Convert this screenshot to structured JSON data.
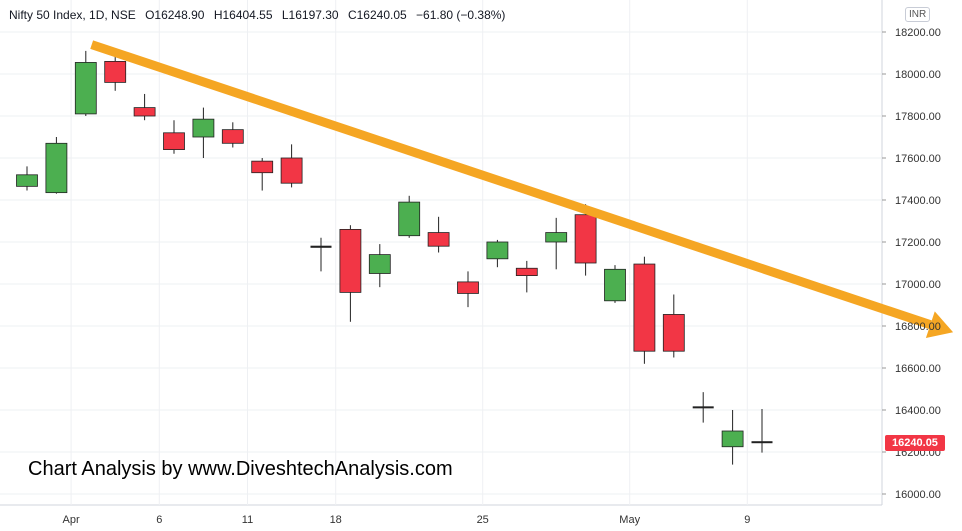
{
  "header": {
    "symbol": "Nifty 50 Index, 1D, NSE",
    "open": "O16248.90",
    "high": "H16404.55",
    "low": "L16197.30",
    "close": "C16240.05",
    "change": "−61.80 (−0.38%)"
  },
  "currency": "INR",
  "watermark": "Chart Analysis by www.DiveshtechAnalysis.com",
  "last_price_label": "16240.05",
  "colors": {
    "up": "#4caf50",
    "down": "#f23645",
    "arrow": "#f5a623",
    "grid": "#eef0f3",
    "axis_text": "#333333"
  },
  "chart_data": {
    "type": "candlestick",
    "title": "Nifty 50 Index, 1D, NSE",
    "ylim": [
      15900,
      18300
    ],
    "y_ticks": [
      16000,
      16200,
      16400,
      16600,
      16800,
      17000,
      17200,
      17400,
      17600,
      17800,
      18000,
      18200
    ],
    "y_tick_labels": [
      "16000.00",
      "16200.00",
      "16400.00",
      "16600.00",
      "16800.00",
      "17000.00",
      "17200.00",
      "17400.00",
      "17600.00",
      "17800.00",
      "18000.00",
      "18200.00"
    ],
    "x_ticks": [
      {
        "label": "Apr",
        "index": 1.5
      },
      {
        "label": "6",
        "index": 4.5
      },
      {
        "label": "11",
        "index": 7.5
      },
      {
        "label": "18",
        "index": 10.5
      },
      {
        "label": "25",
        "index": 15.5
      },
      {
        "label": "May",
        "index": 20.5
      },
      {
        "label": "9",
        "index": 24.5
      }
    ],
    "candles": [
      {
        "o": 17465,
        "h": 17560,
        "l": 17445,
        "c": 17520
      },
      {
        "o": 17435,
        "h": 17700,
        "l": 17430,
        "c": 17670
      },
      {
        "o": 17810,
        "h": 18110,
        "l": 17800,
        "c": 18055
      },
      {
        "o": 18060,
        "h": 18095,
        "l": 17920,
        "c": 17960
      },
      {
        "o": 17840,
        "h": 17905,
        "l": 17780,
        "c": 17800
      },
      {
        "o": 17720,
        "h": 17780,
        "l": 17620,
        "c": 17640
      },
      {
        "o": 17700,
        "h": 17840,
        "l": 17600,
        "c": 17785
      },
      {
        "o": 17735,
        "h": 17770,
        "l": 17650,
        "c": 17670
      },
      {
        "o": 17585,
        "h": 17600,
        "l": 17445,
        "c": 17530
      },
      {
        "o": 17600,
        "h": 17665,
        "l": 17460,
        "c": 17480
      },
      {
        "o": 17180,
        "h": 17220,
        "l": 17060,
        "c": 17170
      },
      {
        "o": 17260,
        "h": 17280,
        "l": 16820,
        "c": 16960
      },
      {
        "o": 17050,
        "h": 17190,
        "l": 16985,
        "c": 17140
      },
      {
        "o": 17230,
        "h": 17420,
        "l": 17220,
        "c": 17390
      },
      {
        "o": 17245,
        "h": 17320,
        "l": 17150,
        "c": 17180
      },
      {
        "o": 17010,
        "h": 17060,
        "l": 16890,
        "c": 16955
      },
      {
        "o": 17120,
        "h": 17210,
        "l": 17080,
        "c": 17200
      },
      {
        "o": 17075,
        "h": 17110,
        "l": 16960,
        "c": 17040
      },
      {
        "o": 17200,
        "h": 17315,
        "l": 17070,
        "c": 17245
      },
      {
        "o": 17330,
        "h": 17380,
        "l": 17040,
        "c": 17100
      },
      {
        "o": 16920,
        "h": 17090,
        "l": 16910,
        "c": 17070
      },
      {
        "o": 17095,
        "h": 17130,
        "l": 16620,
        "c": 16680
      },
      {
        "o": 16855,
        "h": 16950,
        "l": 16650,
        "c": 16680
      },
      {
        "o": 16410,
        "h": 16485,
        "l": 16340,
        "c": 16415
      },
      {
        "o": 16225,
        "h": 16400,
        "l": 16140,
        "c": 16300
      },
      {
        "o": 16249,
        "h": 16405,
        "l": 16197,
        "c": 16240
      }
    ],
    "trend_arrow": {
      "from": {
        "index": 2.2,
        "value": 18140
      },
      "to": {
        "index": 31.5,
        "value": 16770
      }
    }
  }
}
